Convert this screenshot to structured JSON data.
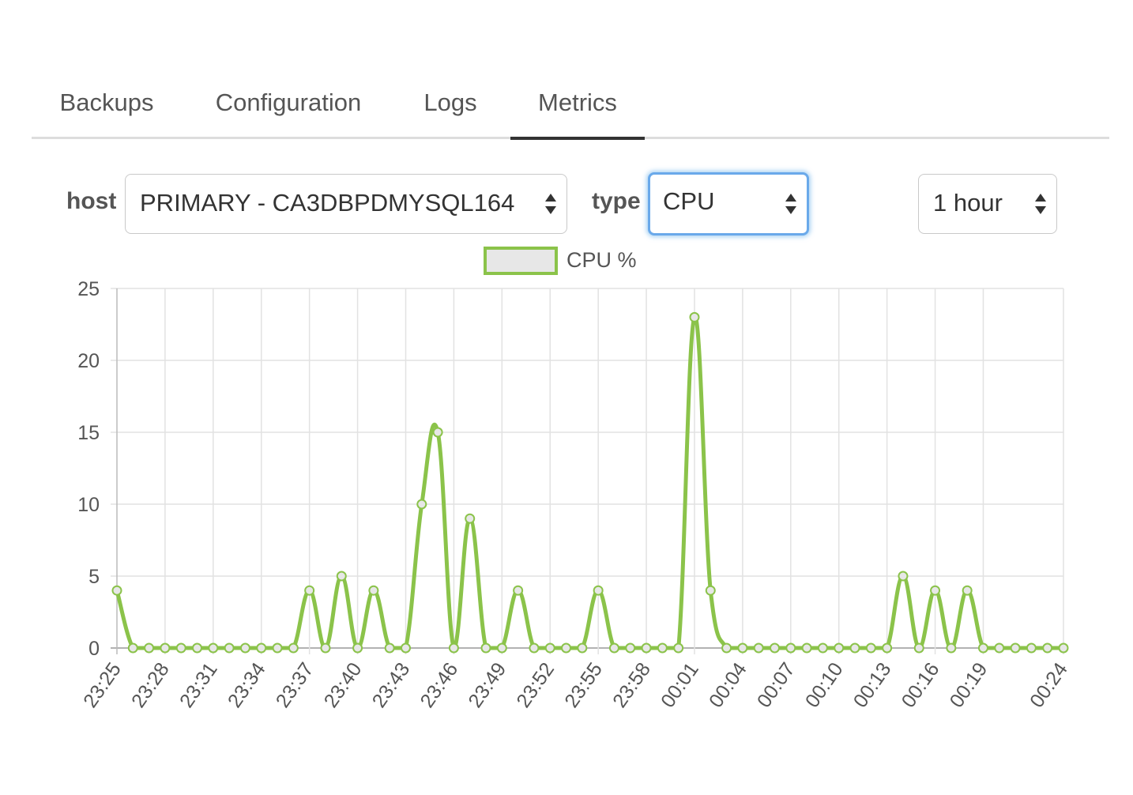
{
  "tabs": [
    {
      "label": "Backups",
      "active": false
    },
    {
      "label": "Configuration",
      "active": false
    },
    {
      "label": "Logs",
      "active": false
    },
    {
      "label": "Metrics",
      "active": true
    }
  ],
  "filters": {
    "host_label": "host",
    "host_value": "PRIMARY - CA3DBPDMYSQL164",
    "type_label": "type",
    "type_value": "CPU",
    "range_value": "1 hour"
  },
  "legend": {
    "label": "CPU %",
    "color": "#8bc34a"
  },
  "chart_data": {
    "type": "line",
    "series": [
      {
        "name": "CPU %",
        "color": "#8bc34a",
        "x": [
          "23:25",
          "23:26",
          "23:27",
          "23:28",
          "23:29",
          "23:30",
          "23:31",
          "23:32",
          "23:33",
          "23:34",
          "23:35",
          "23:36",
          "23:37",
          "23:38",
          "23:39",
          "23:40",
          "23:41",
          "23:42",
          "23:43",
          "23:44",
          "23:45",
          "23:46",
          "23:47",
          "23:48",
          "23:49",
          "23:50",
          "23:51",
          "23:52",
          "23:53",
          "23:54",
          "23:55",
          "23:56",
          "23:57",
          "23:58",
          "23:59",
          "00:00",
          "00:01",
          "00:02",
          "00:03",
          "00:04",
          "00:05",
          "00:06",
          "00:07",
          "00:08",
          "00:09",
          "00:10",
          "00:11",
          "00:12",
          "00:13",
          "00:14",
          "00:15",
          "00:16",
          "00:17",
          "00:18",
          "00:19",
          "00:20",
          "00:21",
          "00:22",
          "00:23",
          "00:24"
        ],
        "values": [
          4,
          0,
          0,
          0,
          0,
          0,
          0,
          0,
          0,
          0,
          0,
          0,
          4,
          0,
          5,
          0,
          4,
          0,
          0,
          10,
          15,
          0,
          9,
          0,
          0,
          4,
          0,
          0,
          0,
          0,
          4,
          0,
          0,
          0,
          0,
          0,
          23,
          4,
          0,
          0,
          0,
          0,
          0,
          0,
          0,
          0,
          0,
          0,
          0,
          5,
          0,
          4,
          0,
          4,
          0,
          0,
          0,
          0,
          0,
          0
        ]
      }
    ],
    "x_tick_labels": [
      "23:25",
      "23:28",
      "23:31",
      "23:34",
      "23:37",
      "23:40",
      "23:43",
      "23:46",
      "23:49",
      "23:52",
      "23:55",
      "23:58",
      "00:01",
      "00:04",
      "00:07",
      "00:10",
      "00:13",
      "00:16",
      "00:19",
      "00:24"
    ],
    "y_ticks": [
      0,
      5,
      10,
      15,
      20,
      25
    ],
    "ylim": [
      0,
      25
    ],
    "grid": true,
    "legend_position": "top-center"
  }
}
